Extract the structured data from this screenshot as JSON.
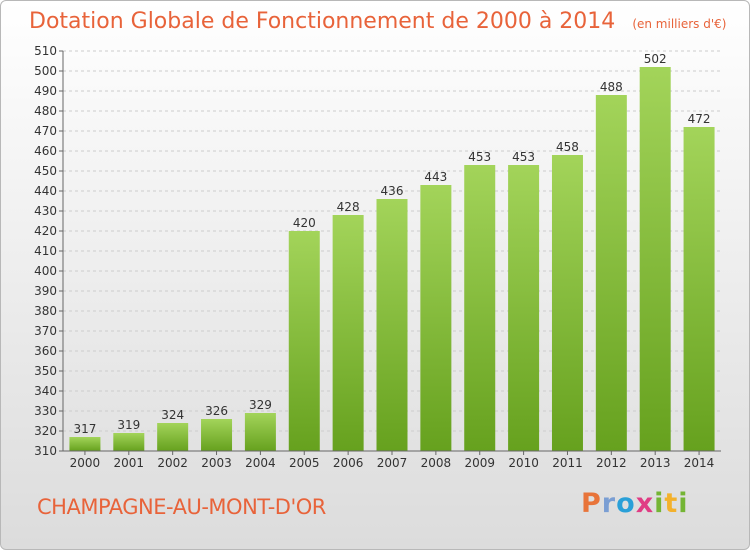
{
  "header": {
    "title": "Dotation Globale de Fonctionnement de 2000 à 2014",
    "subtitle": "(en milliers d'€)"
  },
  "footer": {
    "city": "CHAMPAGNE-AU-MONT-D'OR",
    "logo_text": "Proxiti"
  },
  "colors": {
    "bar_light": "#a3d45a",
    "bar_dark": "#66a11e",
    "title": "#e8633a",
    "grid": "#cccccc"
  },
  "chart_data": {
    "type": "bar",
    "title": "Dotation Globale de Fonctionnement de 2000 à 2014",
    "subtitle": "(en milliers d'€)",
    "xlabel": "",
    "ylabel": "",
    "categories": [
      "2000",
      "2001",
      "2002",
      "2003",
      "2004",
      "2005",
      "2006",
      "2007",
      "2008",
      "2009",
      "2010",
      "2011",
      "2012",
      "2013",
      "2014"
    ],
    "values": [
      317,
      319,
      324,
      326,
      329,
      420,
      428,
      436,
      443,
      453,
      453,
      458,
      488,
      502,
      472
    ],
    "ylim": [
      310,
      510
    ],
    "yticks": [
      310,
      320,
      330,
      340,
      350,
      360,
      370,
      380,
      390,
      400,
      410,
      420,
      430,
      440,
      450,
      460,
      470,
      480,
      490,
      500,
      510
    ],
    "grid": true,
    "legend": "none"
  }
}
